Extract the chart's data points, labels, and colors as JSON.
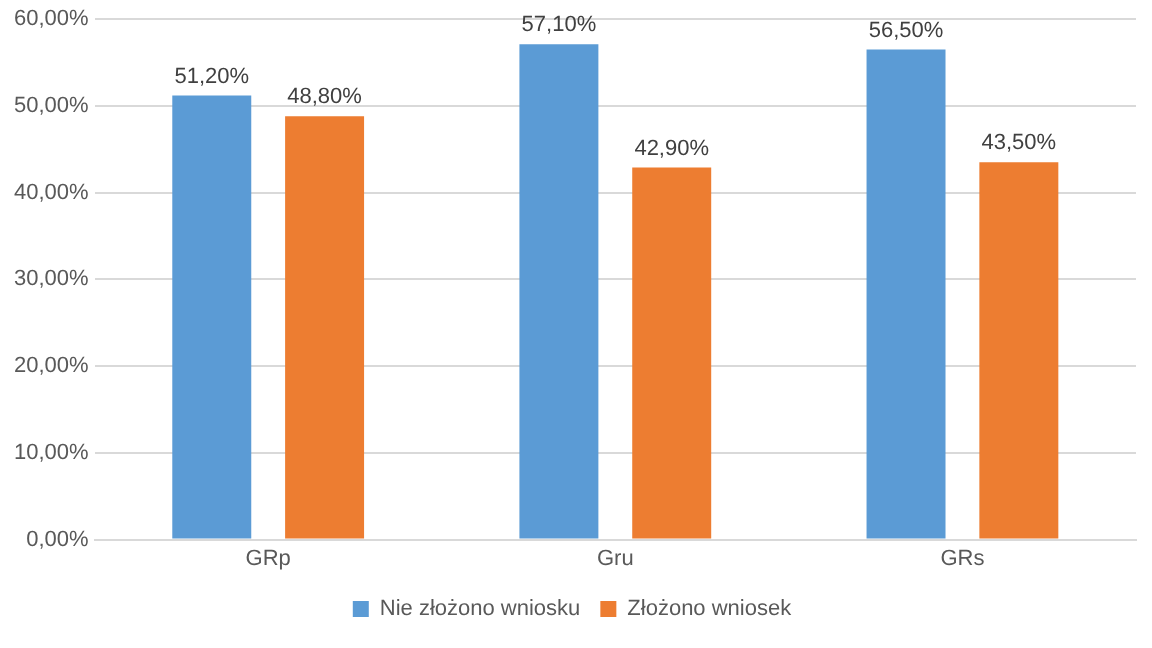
{
  "chart_data": {
    "type": "bar",
    "categories": [
      "GRp",
      "Gru",
      "GRs"
    ],
    "series": [
      {
        "name": "Nie złożono wniosku",
        "color": "#5b9bd5",
        "values": [
          51.2,
          57.1,
          56.5
        ],
        "value_labels": [
          "51,20%",
          "57,10%",
          "56,50%"
        ]
      },
      {
        "name": "Złożono wniosek",
        "color": "#ed7d31",
        "values": [
          48.8,
          42.9,
          43.5
        ],
        "value_labels": [
          "48,80%",
          "42,90%",
          "43,50%"
        ]
      }
    ],
    "ylim": [
      0,
      60
    ],
    "yticks": [
      {
        "value": 0,
        "label": "0,00%"
      },
      {
        "value": 10,
        "label": "10,00%"
      },
      {
        "value": 20,
        "label": "20,00%"
      },
      {
        "value": 30,
        "label": "30,00%"
      },
      {
        "value": 40,
        "label": "40,00%"
      },
      {
        "value": 50,
        "label": "50,00%"
      },
      {
        "value": 60,
        "label": "60,00%"
      }
    ],
    "grid": "y",
    "legend": "bottom"
  }
}
